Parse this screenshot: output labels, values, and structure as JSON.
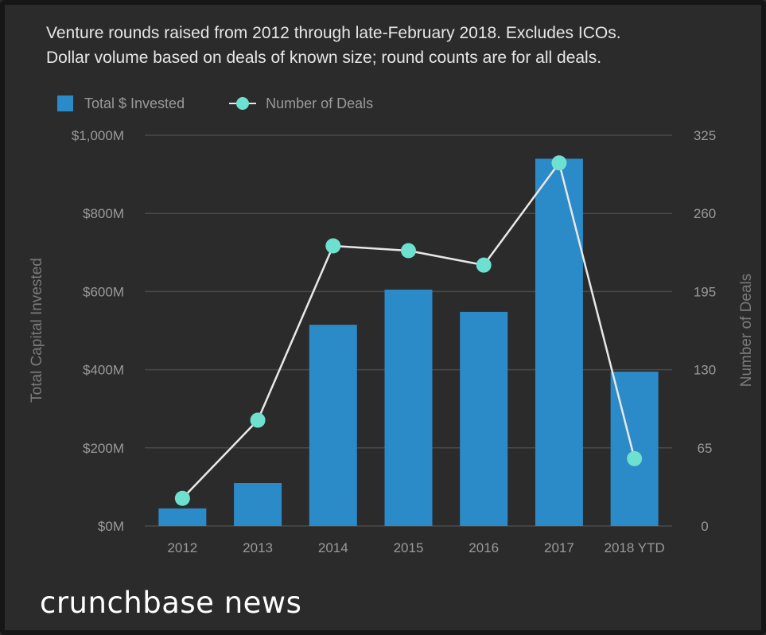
{
  "subtitle_lines": [
    "Venture rounds raised from 2012 through late-February 2018. Excludes ICOs.",
    "Dollar volume based on deals of known size; round counts are for all deals."
  ],
  "logo_text": "crunchbase news",
  "colors": {
    "background": "#2b2b2b",
    "bar": "#2b8ac8",
    "line": "#e8e8e8",
    "marker": "#6ee0cf",
    "gridline": "#4a4a4a",
    "tick_text": "#9a9a9a"
  },
  "chart_data": {
    "type": "bar",
    "categories": [
      "2012",
      "2013",
      "2014",
      "2015",
      "2016",
      "2017",
      "2018 YTD"
    ],
    "legend": {
      "placement": "top-left",
      "entries": [
        "Total $ Invested",
        "Number of Deals"
      ]
    },
    "series": [
      {
        "name": "Total $ Invested",
        "type": "bar",
        "axis": "left",
        "values": [
          45,
          110,
          515,
          605,
          548,
          940,
          395
        ]
      },
      {
        "name": "Number of Deals",
        "type": "line",
        "axis": "right",
        "values": [
          23,
          88,
          233,
          229,
          217,
          302,
          56
        ]
      }
    ],
    "y_left": {
      "label": "Total Capital Invested",
      "range": [
        0,
        1000
      ],
      "unit": "$M",
      "ticks": [
        0,
        200,
        400,
        600,
        800,
        1000
      ],
      "tick_labels": [
        "$0M",
        "$200M",
        "$400M",
        "$600M",
        "$800M",
        "$1,000M"
      ]
    },
    "y_right": {
      "label": "Number of Deals",
      "range": [
        0,
        325
      ],
      "ticks": [
        0,
        65,
        130,
        195,
        260,
        325
      ],
      "tick_labels": [
        "0",
        "65",
        "130",
        "195",
        "260",
        "325"
      ]
    },
    "grid": true
  }
}
